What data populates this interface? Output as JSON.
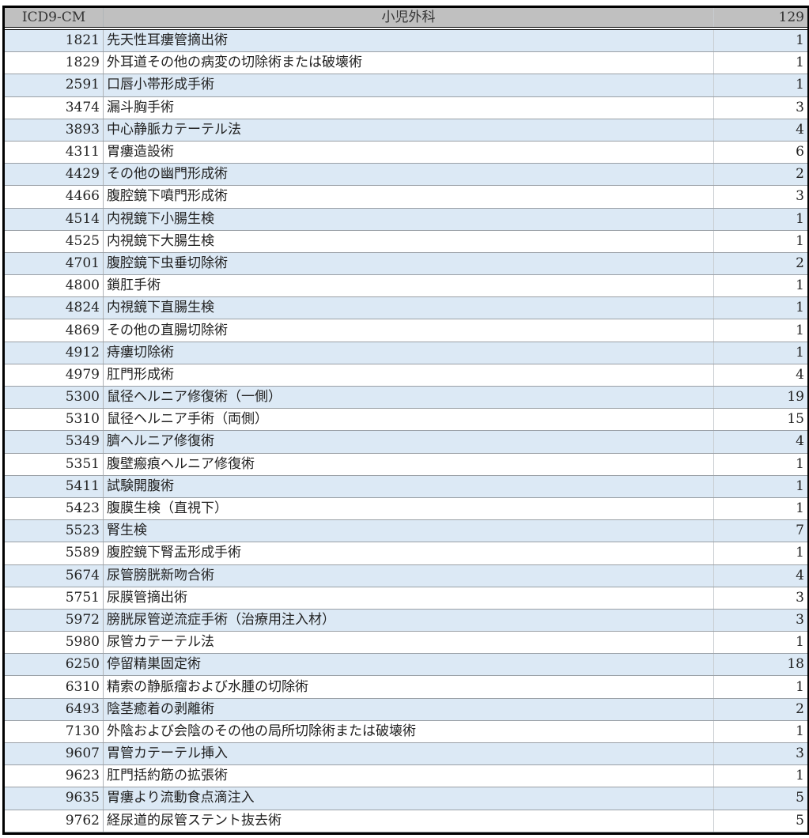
{
  "header": {
    "code": "ICD9-CM",
    "department": "小児外科",
    "total": "129"
  },
  "colors": {
    "header_bg": "#c0c0c0",
    "band": "#dce9f5",
    "border": "#000000"
  },
  "rows": [
    {
      "code": "1821",
      "name": "先天性耳瘻管摘出術",
      "count": "1"
    },
    {
      "code": "1829",
      "name": "外耳道その他の病変の切除術または破壊術",
      "count": "1"
    },
    {
      "code": "2591",
      "name": "口唇小帯形成手術",
      "count": "1"
    },
    {
      "code": "3474",
      "name": "漏斗胸手術",
      "count": "3"
    },
    {
      "code": "3893",
      "name": "中心静脈カテーテル法",
      "count": "4"
    },
    {
      "code": "4311",
      "name": "胃瘻造設術",
      "count": "6"
    },
    {
      "code": "4429",
      "name": "その他の幽門形成術",
      "count": "2"
    },
    {
      "code": "4466",
      "name": "腹腔鏡下噴門形成術",
      "count": "3"
    },
    {
      "code": "4514",
      "name": "内視鏡下小腸生検",
      "count": "1"
    },
    {
      "code": "4525",
      "name": "内視鏡下大腸生検",
      "count": "1"
    },
    {
      "code": "4701",
      "name": "腹腔鏡下虫垂切除術",
      "count": "2"
    },
    {
      "code": "4800",
      "name": "鎖肛手術",
      "count": "1"
    },
    {
      "code": "4824",
      "name": "内視鏡下直腸生検",
      "count": "1"
    },
    {
      "code": "4869",
      "name": "その他の直腸切除術",
      "count": "1"
    },
    {
      "code": "4912",
      "name": "痔瘻切除術",
      "count": "1"
    },
    {
      "code": "4979",
      "name": "肛門形成術",
      "count": "4"
    },
    {
      "code": "5300",
      "name": "鼠径ヘルニア修復術（一側）",
      "count": "19"
    },
    {
      "code": "5310",
      "name": "鼠径ヘルニア手術（両側）",
      "count": "15"
    },
    {
      "code": "5349",
      "name": "臍ヘルニア修復術",
      "count": "4"
    },
    {
      "code": "5351",
      "name": "腹壁瘢痕ヘルニア修復術",
      "count": "1"
    },
    {
      "code": "5411",
      "name": "試験開腹術",
      "count": "1"
    },
    {
      "code": "5423",
      "name": "腹膜生検（直視下）",
      "count": "1"
    },
    {
      "code": "5523",
      "name": "腎生検",
      "count": "7"
    },
    {
      "code": "5589",
      "name": "腹腔鏡下腎盂形成手術",
      "count": "1"
    },
    {
      "code": "5674",
      "name": "尿管膀胱新吻合術",
      "count": "4"
    },
    {
      "code": "5751",
      "name": "尿膜管摘出術",
      "count": "3"
    },
    {
      "code": "5972",
      "name": "膀胱尿管逆流症手術（治療用注入材）",
      "count": "3"
    },
    {
      "code": "5980",
      "name": "尿管カテーテル法",
      "count": "1"
    },
    {
      "code": "6250",
      "name": "停留精巣固定術",
      "count": "18"
    },
    {
      "code": "6310",
      "name": "精索の静脈瘤および水腫の切除術",
      "count": "1"
    },
    {
      "code": "6493",
      "name": "陰茎癒着の剥離術",
      "count": "2"
    },
    {
      "code": "7130",
      "name": "外陰および会陰のその他の局所切除術または破壊術",
      "count": "1"
    },
    {
      "code": "9607",
      "name": "胃管カテーテル挿入",
      "count": "3"
    },
    {
      "code": "9623",
      "name": "肛門括約筋の拡張術",
      "count": "1"
    },
    {
      "code": "9635",
      "name": "胃瘻より流動食点滴注入",
      "count": "5"
    },
    {
      "code": "9762",
      "name": "経尿道的尿管ステント抜去術",
      "count": "5"
    }
  ]
}
